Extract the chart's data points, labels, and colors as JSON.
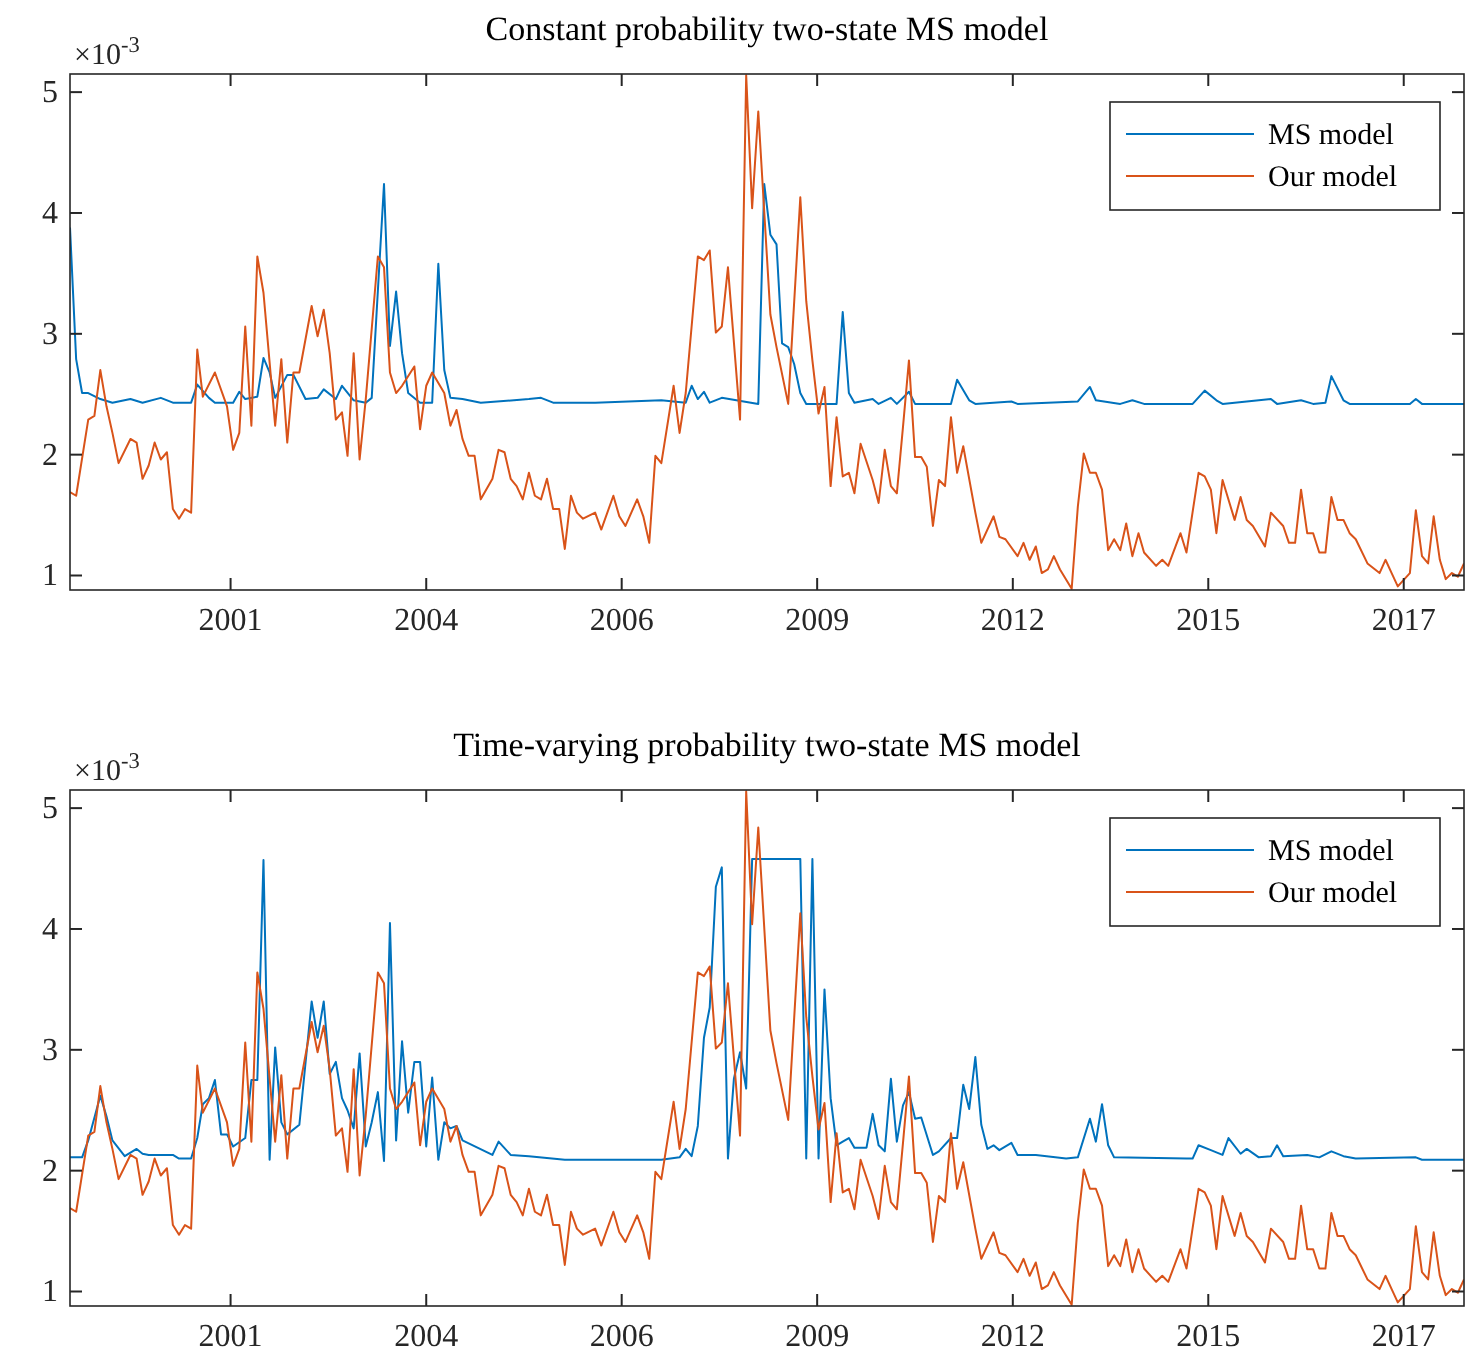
{
  "chart_data": [
    {
      "type": "line",
      "title": "Constant probability two-state MS model",
      "annotations": [
        "×10$^{-3}$"
      ],
      "xlim": [
        "1999-05",
        "2018-08"
      ],
      "xticks": [
        {
          "value": "2001-07-19",
          "label": "2001"
        },
        {
          "value": "2004-04-01",
          "label": "2004"
        },
        {
          "value": "2006-12-13",
          "label": "2006"
        },
        {
          "value": "2009-08-25",
          "label": "2009"
        },
        {
          "value": "2012-05-08",
          "label": "2012"
        },
        {
          "value": "2015-01-19",
          "label": "2015"
        },
        {
          "value": "2017-10-01",
          "label": "2017"
        }
      ],
      "ylim": [
        0.88,
        5.15
      ],
      "yticks": [
        1,
        2,
        3,
        4,
        5
      ],
      "legend": "top right",
      "grid": false,
      "line_style": "solid",
      "marker": "none",
      "series": [
        {
          "name": "MS model",
          "color": "#0072bd",
          "x": [
            "1999-05",
            "1999-06",
            "1999-07",
            "1999-08",
            "1999-10",
            "1999-12",
            "2000-03",
            "2000-05",
            "2000-08",
            "2000-10",
            "2001-01",
            "2001-02",
            "2001-04",
            "2001-05",
            "2001-08",
            "2001-09",
            "2001-10",
            "2001-12",
            "2002-01",
            "2002-02",
            "2002-03",
            "2002-05",
            "2002-06",
            "2002-08",
            "2002-10",
            "2002-11",
            "2003-01",
            "2003-02",
            "2003-04",
            "2003-06",
            "2003-07",
            "2003-09",
            "2003-10",
            "2003-11",
            "2003-12",
            "2004-01",
            "2004-03",
            "2004-05",
            "2004-06",
            "2004-07",
            "2004-08",
            "2004-10",
            "2005-01",
            "2005-09",
            "2005-11",
            "2006-01",
            "2006-08",
            "2007-07",
            "2007-11",
            "2007-12",
            "2008-01",
            "2008-02",
            "2008-03",
            "2008-05",
            "2008-11",
            "2008-12",
            "2009-01",
            "2009-02",
            "2009-03",
            "2009-04",
            "2009-05",
            "2009-06",
            "2009-07",
            "2009-12",
            "2010-01",
            "2010-02",
            "2010-03",
            "2010-06",
            "2010-07",
            "2010-09",
            "2010-10",
            "2010-12",
            "2011-01",
            "2011-07",
            "2011-08",
            "2011-10",
            "2011-11",
            "2012-05",
            "2012-06",
            "2013-04",
            "2013-06",
            "2013-07",
            "2013-11",
            "2014-01",
            "2014-03",
            "2014-11",
            "2015-01",
            "2015-03",
            "2015-04",
            "2015-12",
            "2016-01",
            "2016-05",
            "2016-07",
            "2016-09",
            "2016-10",
            "2016-12",
            "2017-01",
            "2017-11",
            "2017-12",
            "2018-01",
            "2018-08"
          ],
          "values": [
            3.88,
            2.79,
            2.51,
            2.51,
            2.46,
            2.43,
            2.46,
            2.43,
            2.47,
            2.43,
            2.43,
            2.58,
            2.47,
            2.43,
            2.43,
            2.52,
            2.46,
            2.48,
            2.8,
            2.68,
            2.47,
            2.66,
            2.66,
            2.46,
            2.47,
            2.54,
            2.46,
            2.57,
            2.45,
            2.43,
            2.47,
            4.24,
            2.9,
            3.35,
            2.84,
            2.51,
            2.43,
            2.43,
            3.58,
            2.7,
            2.47,
            2.46,
            2.43,
            2.46,
            2.47,
            2.43,
            2.43,
            2.45,
            2.43,
            2.57,
            2.46,
            2.52,
            2.43,
            2.47,
            2.42,
            4.24,
            3.82,
            3.74,
            2.92,
            2.89,
            2.75,
            2.51,
            2.42,
            2.42,
            3.18,
            2.51,
            2.43,
            2.46,
            2.42,
            2.47,
            2.42,
            2.52,
            2.42,
            2.42,
            2.62,
            2.45,
            2.42,
            2.44,
            2.42,
            2.44,
            2.56,
            2.45,
            2.42,
            2.45,
            2.42,
            2.42,
            2.53,
            2.45,
            2.42,
            2.46,
            2.42,
            2.45,
            2.42,
            2.43,
            2.65,
            2.45,
            2.42,
            2.42,
            2.46,
            2.42,
            2.42
          ]
        },
        {
          "name": "Our model",
          "color": "#d95319",
          "x": [
            "1999-05",
            "1999-06",
            "1999-08",
            "1999-09",
            "1999-10",
            "1999-11",
            "1999-12",
            "2000-01",
            "2000-03",
            "2000-04",
            "2000-05",
            "2000-06",
            "2000-07",
            "2000-08",
            "2000-09",
            "2000-10",
            "2000-11",
            "2000-12",
            "2001-01",
            "2001-02",
            "2001-03",
            "2001-05",
            "2001-07",
            "2001-08",
            "2001-09",
            "2001-10",
            "2001-11",
            "2001-12",
            "2002-01",
            "2002-03",
            "2002-04",
            "2002-05",
            "2002-06",
            "2002-07",
            "2002-09",
            "2002-10",
            "2002-11",
            "2002-12",
            "2003-01",
            "2003-02",
            "2003-03",
            "2003-04",
            "2003-05",
            "2003-06",
            "2003-08",
            "2003-09",
            "2003-10",
            "2003-11",
            "2003-12",
            "2004-02",
            "2004-03",
            "2004-04",
            "2004-05",
            "2004-07",
            "2004-08",
            "2004-09",
            "2004-10",
            "2004-11",
            "2004-12",
            "2005-01",
            "2005-03",
            "2005-04",
            "2005-05",
            "2005-06",
            "2005-07",
            "2005-08",
            "2005-09",
            "2005-10",
            "2005-11",
            "2005-12",
            "2006-01",
            "2006-02",
            "2006-03",
            "2006-04",
            "2006-05",
            "2006-06",
            "2006-08",
            "2006-09",
            "2006-11",
            "2006-12",
            "2007-01",
            "2007-03",
            "2007-04",
            "2007-05",
            "2007-06",
            "2007-07",
            "2007-09",
            "2007-10",
            "2007-11",
            "2008-01",
            "2008-02",
            "2008-03",
            "2008-04",
            "2008-05",
            "2008-06",
            "2008-08",
            "2008-09",
            "2008-10",
            "2008-11",
            "2009-01",
            "2009-02",
            "2009-04",
            "2009-06",
            "2009-07",
            "2009-08",
            "2009-09",
            "2009-10",
            "2009-11",
            "2009-12",
            "2010-01",
            "2010-02",
            "2010-03",
            "2010-04",
            "2010-06",
            "2010-07",
            "2010-08",
            "2010-09",
            "2010-10",
            "2010-11",
            "2010-12",
            "2011-01",
            "2011-02",
            "2011-03",
            "2011-04",
            "2011-05",
            "2011-06",
            "2011-07",
            "2011-08",
            "2011-09",
            "2011-11",
            "2011-12",
            "2012-02",
            "2012-03",
            "2012-04",
            "2012-06",
            "2012-07",
            "2012-08",
            "2012-09",
            "2012-10",
            "2012-11",
            "2012-12",
            "2013-01",
            "2013-03",
            "2013-04",
            "2013-05",
            "2013-06",
            "2013-07",
            "2013-08",
            "2013-09",
            "2013-10",
            "2013-11",
            "2013-12",
            "2014-01",
            "2014-02",
            "2014-03",
            "2014-05",
            "2014-06",
            "2014-07",
            "2014-09",
            "2014-10",
            "2014-12",
            "2015-01",
            "2015-02",
            "2015-03",
            "2015-04",
            "2015-06",
            "2015-07",
            "2015-08",
            "2015-09",
            "2015-11",
            "2015-12",
            "2016-02",
            "2016-03",
            "2016-04",
            "2016-05",
            "2016-06",
            "2016-07",
            "2016-08",
            "2016-09",
            "2016-10",
            "2016-11",
            "2016-12",
            "2017-01",
            "2017-02",
            "2017-04",
            "2017-06",
            "2017-07",
            "2017-08",
            "2017-09",
            "2017-11",
            "2017-12",
            "2018-01",
            "2018-02",
            "2018-03",
            "2018-04",
            "2018-05",
            "2018-06",
            "2018-07",
            "2018-08"
          ],
          "values": [
            1.69,
            1.66,
            2.29,
            2.32,
            2.7,
            2.4,
            2.18,
            1.93,
            2.13,
            2.1,
            1.8,
            1.91,
            2.1,
            1.96,
            2.02,
            1.55,
            1.47,
            1.55,
            1.52,
            2.87,
            2.48,
            2.68,
            2.4,
            2.04,
            2.18,
            3.06,
            2.24,
            3.64,
            3.34,
            2.24,
            2.79,
            2.1,
            2.68,
            2.68,
            3.23,
            2.98,
            3.2,
            2.84,
            2.29,
            2.35,
            1.99,
            2.84,
            1.96,
            2.46,
            3.64,
            3.55,
            2.68,
            2.51,
            2.57,
            2.73,
            2.21,
            2.57,
            2.68,
            2.51,
            2.24,
            2.37,
            2.13,
            1.99,
            1.99,
            1.63,
            1.8,
            2.04,
            2.02,
            1.8,
            1.74,
            1.63,
            1.85,
            1.66,
            1.63,
            1.8,
            1.55,
            1.55,
            1.22,
            1.66,
            1.52,
            1.47,
            1.52,
            1.38,
            1.66,
            1.49,
            1.41,
            1.63,
            1.49,
            1.27,
            1.99,
            1.93,
            2.57,
            2.18,
            2.51,
            3.64,
            3.61,
            3.69,
            3.01,
            3.06,
            3.55,
            2.29,
            5.14,
            4.04,
            4.84,
            3.16,
            2.89,
            2.42,
            4.13,
            3.27,
            2.78,
            2.34,
            2.56,
            1.74,
            2.31,
            1.82,
            1.85,
            1.68,
            2.09,
            1.79,
            1.6,
            2.04,
            1.74,
            1.68,
            2.23,
            2.78,
            1.98,
            1.98,
            1.9,
            1.41,
            1.79,
            1.74,
            2.31,
            1.85,
            2.07,
            1.52,
            1.27,
            1.49,
            1.32,
            1.3,
            1.16,
            1.27,
            1.13,
            1.24,
            1.02,
            1.05,
            1.16,
            1.05,
            0.89,
            1.57,
            2.01,
            1.85,
            1.85,
            1.71,
            1.21,
            1.3,
            1.21,
            1.43,
            1.16,
            1.35,
            1.19,
            1.08,
            1.13,
            1.08,
            1.35,
            1.19,
            1.85,
            1.82,
            1.71,
            1.35,
            1.79,
            1.46,
            1.65,
            1.46,
            1.41,
            1.24,
            1.52,
            1.41,
            1.27,
            1.27,
            1.71,
            1.35,
            1.35,
            1.19,
            1.19,
            1.65,
            1.46,
            1.46,
            1.35,
            1.3,
            1.1,
            1.02,
            1.13,
            1.02,
            0.91,
            1.02,
            1.54,
            1.16,
            1.1,
            1.49,
            1.13,
            0.97,
            1.02,
            0.99,
            1.1
          ]
        }
      ]
    },
    {
      "type": "line",
      "title": "Time-varying probability two-state MS model",
      "annotations": [
        "×10$^{-3}$"
      ],
      "xlim": [
        "1999-05",
        "2018-08"
      ],
      "xticks": [
        {
          "value": "2001-07-19",
          "label": "2001"
        },
        {
          "value": "2004-04-01",
          "label": "2004"
        },
        {
          "value": "2006-12-13",
          "label": "2006"
        },
        {
          "value": "2009-08-25",
          "label": "2009"
        },
        {
          "value": "2012-05-08",
          "label": "2012"
        },
        {
          "value": "2015-01-19",
          "label": "2015"
        },
        {
          "value": "2017-10-01",
          "label": "2017"
        }
      ],
      "ylim": [
        0.88,
        5.15
      ],
      "yticks": [
        1,
        2,
        3,
        4,
        5
      ],
      "legend": "top right",
      "grid": false,
      "line_style": "solid",
      "marker": "none",
      "series": [
        {
          "name": "MS model",
          "color": "#0072bd",
          "x": [
            "1999-05",
            "1999-07",
            "1999-08",
            "1999-10",
            "1999-11",
            "1999-12",
            "2000-02",
            "2000-04",
            "2000-05",
            "2000-06",
            "2000-10",
            "2000-11",
            "2001-01",
            "2001-02",
            "2001-03",
            "2001-04",
            "2001-05",
            "2001-06",
            "2001-07",
            "2001-08",
            "2001-10",
            "2001-11",
            "2001-12",
            "2002-01",
            "2002-02",
            "2002-03",
            "2002-04",
            "2002-05",
            "2002-07",
            "2002-09",
            "2002-10",
            "2002-11",
            "2002-12",
            "2003-01",
            "2003-02",
            "2003-03",
            "2003-04",
            "2003-05",
            "2003-06",
            "2003-07",
            "2003-08",
            "2003-09",
            "2003-10",
            "2003-11",
            "2003-12",
            "2004-01",
            "2004-02",
            "2004-03",
            "2004-04",
            "2004-05",
            "2004-06",
            "2004-07",
            "2004-08",
            "2004-09",
            "2004-10",
            "2005-03",
            "2005-04",
            "2005-06",
            "2005-09",
            "2006-03",
            "2007-07",
            "2007-10",
            "2007-11",
            "2007-12",
            "2008-01",
            "2008-02",
            "2008-03",
            "2008-04",
            "2008-05",
            "2008-06",
            "2008-07",
            "2008-08",
            "2008-09",
            "2008-10",
            "2009-06",
            "2009-07",
            "2009-08",
            "2009-09",
            "2009-10",
            "2009-11",
            "2009-12",
            "2010-01",
            "2010-02",
            "2010-03",
            "2010-05",
            "2010-06",
            "2010-07",
            "2010-08",
            "2010-09",
            "2010-10",
            "2010-11",
            "2010-12",
            "2011-01",
            "2011-02",
            "2011-04",
            "2011-05",
            "2011-07",
            "2011-08",
            "2011-09",
            "2011-10",
            "2011-11",
            "2011-12",
            "2012-01",
            "2012-02",
            "2012-03",
            "2012-05",
            "2012-06",
            "2012-09",
            "2013-02",
            "2013-04",
            "2013-06",
            "2013-07",
            "2013-08",
            "2013-09",
            "2013-10",
            "2014-10",
            "2014-11",
            "2014-12",
            "2015-02",
            "2015-04",
            "2015-05",
            "2015-07",
            "2015-08",
            "2015-10",
            "2015-12",
            "2016-01",
            "2016-02",
            "2016-06",
            "2016-08",
            "2016-10",
            "2016-12",
            "2017-02",
            "2017-12",
            "2018-01",
            "2018-08"
          ],
          "values": [
            2.11,
            2.11,
            2.25,
            2.62,
            2.45,
            2.25,
            2.12,
            2.18,
            2.14,
            2.13,
            2.13,
            2.1,
            2.1,
            2.27,
            2.55,
            2.6,
            2.75,
            2.3,
            2.3,
            2.2,
            2.27,
            2.75,
            2.75,
            4.57,
            2.09,
            3.02,
            2.4,
            2.3,
            2.38,
            3.4,
            3.1,
            3.4,
            2.8,
            2.9,
            2.6,
            2.5,
            2.35,
            2.97,
            2.2,
            2.4,
            2.65,
            2.08,
            4.05,
            2.25,
            3.07,
            2.48,
            2.9,
            2.9,
            2.2,
            2.77,
            2.09,
            2.4,
            2.35,
            2.37,
            2.25,
            2.13,
            2.24,
            2.13,
            2.12,
            2.09,
            2.09,
            2.11,
            2.18,
            2.12,
            2.37,
            3.1,
            3.35,
            4.35,
            4.51,
            2.1,
            2.76,
            2.98,
            2.68,
            4.58,
            4.58,
            2.1,
            4.58,
            2.1,
            3.5,
            2.6,
            2.21,
            2.24,
            2.27,
            2.19,
            2.19,
            2.47,
            2.21,
            2.16,
            2.76,
            2.24,
            2.54,
            2.65,
            2.43,
            2.44,
            2.13,
            2.16,
            2.27,
            2.27,
            2.71,
            2.51,
            2.94,
            2.38,
            2.18,
            2.21,
            2.17,
            2.23,
            2.13,
            2.13,
            2.1,
            2.11,
            2.43,
            2.24,
            2.55,
            2.21,
            2.11,
            2.1,
            2.1,
            2.21,
            2.17,
            2.13,
            2.27,
            2.14,
            2.18,
            2.11,
            2.12,
            2.21,
            2.12,
            2.13,
            2.11,
            2.16,
            2.12,
            2.1,
            2.11,
            2.09,
            2.09
          ]
        },
        {
          "name": "Our model",
          "color": "#d95319",
          "x": [
            "1999-05",
            "1999-06",
            "1999-08",
            "1999-09",
            "1999-10",
            "1999-11",
            "1999-12",
            "2000-01",
            "2000-03",
            "2000-04",
            "2000-05",
            "2000-06",
            "2000-07",
            "2000-08",
            "2000-09",
            "2000-10",
            "2000-11",
            "2000-12",
            "2001-01",
            "2001-02",
            "2001-03",
            "2001-05",
            "2001-07",
            "2001-08",
            "2001-09",
            "2001-10",
            "2001-11",
            "2001-12",
            "2002-01",
            "2002-03",
            "2002-04",
            "2002-05",
            "2002-06",
            "2002-07",
            "2002-09",
            "2002-10",
            "2002-11",
            "2002-12",
            "2003-01",
            "2003-02",
            "2003-03",
            "2003-04",
            "2003-05",
            "2003-06",
            "2003-08",
            "2003-09",
            "2003-10",
            "2003-11",
            "2003-12",
            "2004-02",
            "2004-03",
            "2004-04",
            "2004-05",
            "2004-07",
            "2004-08",
            "2004-09",
            "2004-10",
            "2004-11",
            "2004-12",
            "2005-01",
            "2005-03",
            "2005-04",
            "2005-05",
            "2005-06",
            "2005-07",
            "2005-08",
            "2005-09",
            "2005-10",
            "2005-11",
            "2005-12",
            "2006-01",
            "2006-02",
            "2006-03",
            "2006-04",
            "2006-05",
            "2006-06",
            "2006-08",
            "2006-09",
            "2006-11",
            "2006-12",
            "2007-01",
            "2007-03",
            "2007-04",
            "2007-05",
            "2007-06",
            "2007-07",
            "2007-09",
            "2007-10",
            "2007-11",
            "2008-01",
            "2008-02",
            "2008-03",
            "2008-04",
            "2008-05",
            "2008-06",
            "2008-08",
            "2008-09",
            "2008-10",
            "2008-11",
            "2009-01",
            "2009-02",
            "2009-04",
            "2009-06",
            "2009-07",
            "2009-08",
            "2009-09",
            "2009-10",
            "2009-11",
            "2009-12",
            "2010-01",
            "2010-02",
            "2010-03",
            "2010-04",
            "2010-06",
            "2010-07",
            "2010-08",
            "2010-09",
            "2010-10",
            "2010-11",
            "2010-12",
            "2011-01",
            "2011-02",
            "2011-03",
            "2011-04",
            "2011-05",
            "2011-06",
            "2011-07",
            "2011-08",
            "2011-09",
            "2011-11",
            "2011-12",
            "2012-02",
            "2012-03",
            "2012-04",
            "2012-06",
            "2012-07",
            "2012-08",
            "2012-09",
            "2012-10",
            "2012-11",
            "2012-12",
            "2013-01",
            "2013-03",
            "2013-04",
            "2013-05",
            "2013-06",
            "2013-07",
            "2013-08",
            "2013-09",
            "2013-10",
            "2013-11",
            "2013-12",
            "2014-01",
            "2014-02",
            "2014-03",
            "2014-05",
            "2014-06",
            "2014-07",
            "2014-09",
            "2014-10",
            "2014-12",
            "2015-01",
            "2015-02",
            "2015-03",
            "2015-04",
            "2015-06",
            "2015-07",
            "2015-08",
            "2015-09",
            "2015-11",
            "2015-12",
            "2016-02",
            "2016-03",
            "2016-04",
            "2016-05",
            "2016-06",
            "2016-07",
            "2016-08",
            "2016-09",
            "2016-10",
            "2016-11",
            "2016-12",
            "2017-01",
            "2017-02",
            "2017-04",
            "2017-06",
            "2017-07",
            "2017-08",
            "2017-09",
            "2017-11",
            "2017-12",
            "2018-01",
            "2018-02",
            "2018-03",
            "2018-04",
            "2018-05",
            "2018-06",
            "2018-07",
            "2018-08"
          ],
          "values": [
            1.69,
            1.66,
            2.29,
            2.32,
            2.7,
            2.4,
            2.18,
            1.93,
            2.13,
            2.1,
            1.8,
            1.91,
            2.1,
            1.96,
            2.02,
            1.55,
            1.47,
            1.55,
            1.52,
            2.87,
            2.48,
            2.68,
            2.4,
            2.04,
            2.18,
            3.06,
            2.24,
            3.64,
            3.34,
            2.24,
            2.79,
            2.1,
            2.68,
            2.68,
            3.23,
            2.98,
            3.2,
            2.84,
            2.29,
            2.35,
            1.99,
            2.84,
            1.96,
            2.46,
            3.64,
            3.55,
            2.68,
            2.51,
            2.57,
            2.73,
            2.21,
            2.57,
            2.68,
            2.51,
            2.24,
            2.37,
            2.13,
            1.99,
            1.99,
            1.63,
            1.8,
            2.04,
            2.02,
            1.8,
            1.74,
            1.63,
            1.85,
            1.66,
            1.63,
            1.8,
            1.55,
            1.55,
            1.22,
            1.66,
            1.52,
            1.47,
            1.52,
            1.38,
            1.66,
            1.49,
            1.41,
            1.63,
            1.49,
            1.27,
            1.99,
            1.93,
            2.57,
            2.18,
            2.51,
            3.64,
            3.61,
            3.69,
            3.01,
            3.06,
            3.55,
            2.29,
            5.14,
            4.04,
            4.84,
            3.16,
            2.89,
            2.42,
            4.13,
            3.27,
            2.78,
            2.34,
            2.56,
            1.74,
            2.31,
            1.82,
            1.85,
            1.68,
            2.09,
            1.79,
            1.6,
            2.04,
            1.74,
            1.68,
            2.23,
            2.78,
            1.98,
            1.98,
            1.9,
            1.41,
            1.79,
            1.74,
            2.31,
            1.85,
            2.07,
            1.52,
            1.27,
            1.49,
            1.32,
            1.3,
            1.16,
            1.27,
            1.13,
            1.24,
            1.02,
            1.05,
            1.16,
            1.05,
            0.89,
            1.57,
            2.01,
            1.85,
            1.85,
            1.71,
            1.21,
            1.3,
            1.21,
            1.43,
            1.16,
            1.35,
            1.19,
            1.08,
            1.13,
            1.08,
            1.35,
            1.19,
            1.85,
            1.82,
            1.71,
            1.35,
            1.79,
            1.46,
            1.65,
            1.46,
            1.41,
            1.24,
            1.52,
            1.41,
            1.27,
            1.27,
            1.71,
            1.35,
            1.35,
            1.19,
            1.19,
            1.65,
            1.46,
            1.46,
            1.35,
            1.3,
            1.1,
            1.02,
            1.13,
            1.02,
            0.91,
            1.02,
            1.54,
            1.16,
            1.1,
            1.49,
            1.13,
            0.97,
            1.02,
            0.99,
            1.1
          ]
        }
      ]
    }
  ]
}
